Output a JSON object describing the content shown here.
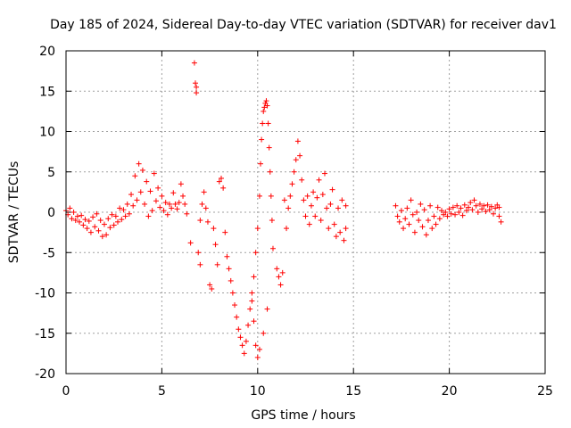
{
  "chart_data": {
    "type": "scatter",
    "title": "Day 185 of 2024, Sidereal Day-to-day VTEC variation (SDTVAR) for receiver dav1",
    "xlabel": "GPS time / hours",
    "ylabel": "SDTVAR / TECUs",
    "xlim": [
      0,
      25
    ],
    "ylim": [
      -20,
      20
    ],
    "xticks": [
      0,
      5,
      10,
      15,
      20,
      25
    ],
    "yticks": [
      -20,
      -15,
      -10,
      -5,
      0,
      5,
      10,
      15,
      20
    ],
    "grid": true,
    "marker": "+",
    "color": "#ff0000",
    "series": [
      {
        "name": "SDTVAR",
        "points": [
          [
            0.0,
            0.2
          ],
          [
            0.1,
            -0.3
          ],
          [
            0.2,
            0.5
          ],
          [
            0.3,
            -0.8
          ],
          [
            0.4,
            0.0
          ],
          [
            0.5,
            -1.0
          ],
          [
            0.6,
            -0.5
          ],
          [
            0.7,
            -1.2
          ],
          [
            0.8,
            -0.4
          ],
          [
            0.9,
            -1.6
          ],
          [
            1.0,
            -0.9
          ],
          [
            1.1,
            -2.0
          ],
          [
            1.2,
            -1.1
          ],
          [
            1.3,
            -2.5
          ],
          [
            1.4,
            -0.6
          ],
          [
            1.5,
            -1.8
          ],
          [
            1.6,
            -0.2
          ],
          [
            1.7,
            -2.3
          ],
          [
            1.8,
            -1.0
          ],
          [
            1.9,
            -3.0
          ],
          [
            2.0,
            -1.5
          ],
          [
            2.1,
            -2.8
          ],
          [
            2.2,
            -0.8
          ],
          [
            2.3,
            -1.9
          ],
          [
            2.4,
            -0.3
          ],
          [
            2.5,
            -1.6
          ],
          [
            2.6,
            -0.5
          ],
          [
            2.7,
            -1.2
          ],
          [
            2.8,
            0.5
          ],
          [
            2.9,
            -0.9
          ],
          [
            3.0,
            0.3
          ],
          [
            3.1,
            -0.5
          ],
          [
            3.2,
            1.0
          ],
          [
            3.3,
            -0.2
          ],
          [
            3.4,
            2.2
          ],
          [
            3.5,
            0.8
          ],
          [
            3.6,
            4.5
          ],
          [
            3.7,
            1.5
          ],
          [
            3.8,
            6.0
          ],
          [
            3.9,
            2.5
          ],
          [
            4.0,
            5.2
          ],
          [
            4.1,
            1.0
          ],
          [
            4.2,
            3.8
          ],
          [
            4.3,
            -0.5
          ],
          [
            4.4,
            2.6
          ],
          [
            4.5,
            0.2
          ],
          [
            4.6,
            4.8
          ],
          [
            4.7,
            1.4
          ],
          [
            4.8,
            3.0
          ],
          [
            4.9,
            0.6
          ],
          [
            5.0,
            2.0
          ],
          [
            5.1,
            0.2
          ],
          [
            5.2,
            1.2
          ],
          [
            5.3,
            -0.3
          ],
          [
            5.4,
            1.0
          ],
          [
            5.5,
            0.5
          ],
          [
            5.6,
            2.4
          ],
          [
            5.7,
            1.0
          ],
          [
            5.8,
            0.4
          ],
          [
            5.9,
            1.2
          ],
          [
            6.0,
            3.5
          ],
          [
            6.1,
            2.0
          ],
          [
            6.2,
            1.0
          ],
          [
            6.3,
            -0.2
          ],
          [
            6.5,
            -3.8
          ],
          [
            6.7,
            18.5
          ],
          [
            6.75,
            16.0
          ],
          [
            6.8,
            14.8
          ],
          [
            6.8,
            15.5
          ],
          [
            6.9,
            -5.0
          ],
          [
            7.0,
            -6.5
          ],
          [
            7.0,
            -1.0
          ],
          [
            7.1,
            1.0
          ],
          [
            7.2,
            2.5
          ],
          [
            7.3,
            0.5
          ],
          [
            7.4,
            -1.2
          ],
          [
            7.5,
            -9.0
          ],
          [
            7.6,
            -9.5
          ],
          [
            7.7,
            -2.0
          ],
          [
            7.8,
            -4.0
          ],
          [
            7.9,
            -6.5
          ],
          [
            8.0,
            3.8
          ],
          [
            8.1,
            4.2
          ],
          [
            8.2,
            3.0
          ],
          [
            8.3,
            -2.5
          ],
          [
            8.4,
            -5.5
          ],
          [
            8.5,
            -7.0
          ],
          [
            8.6,
            -8.5
          ],
          [
            8.7,
            -10.0
          ],
          [
            8.8,
            -11.5
          ],
          [
            8.9,
            -13.0
          ],
          [
            9.0,
            -14.5
          ],
          [
            9.1,
            -15.5
          ],
          [
            9.2,
            -16.5
          ],
          [
            9.3,
            -17.5
          ],
          [
            9.4,
            -16.0
          ],
          [
            9.5,
            -14.0
          ],
          [
            9.6,
            -12.0
          ],
          [
            9.7,
            -10.0
          ],
          [
            9.8,
            -8.0
          ],
          [
            9.9,
            -5.0
          ],
          [
            10.0,
            -2.0
          ],
          [
            10.1,
            2.0
          ],
          [
            10.15,
            6.0
          ],
          [
            10.2,
            9.0
          ],
          [
            10.25,
            11.0
          ],
          [
            10.3,
            12.5
          ],
          [
            10.35,
            13.0
          ],
          [
            10.4,
            13.5
          ],
          [
            10.45,
            13.8
          ],
          [
            10.5,
            13.2
          ],
          [
            10.55,
            11.0
          ],
          [
            10.6,
            8.0
          ],
          [
            10.65,
            5.0
          ],
          [
            10.7,
            2.0
          ],
          [
            10.75,
            -1.0
          ],
          [
            10.8,
            -4.5
          ],
          [
            10.5,
            -12.0
          ],
          [
            10.3,
            -15.0
          ],
          [
            10.1,
            -17.0
          ],
          [
            10.0,
            -18.0
          ],
          [
            9.9,
            -16.5
          ],
          [
            9.8,
            -13.5
          ],
          [
            9.7,
            -11.0
          ],
          [
            11.0,
            -7.0
          ],
          [
            11.1,
            -8.0
          ],
          [
            11.2,
            -9.0
          ],
          [
            11.3,
            -7.5
          ],
          [
            11.4,
            1.5
          ],
          [
            11.5,
            -2.0
          ],
          [
            11.6,
            0.5
          ],
          [
            11.7,
            2.0
          ],
          [
            11.8,
            3.5
          ],
          [
            11.9,
            5.0
          ],
          [
            12.0,
            6.5
          ],
          [
            12.1,
            8.8
          ],
          [
            12.2,
            7.0
          ],
          [
            12.3,
            4.0
          ],
          [
            12.4,
            1.5
          ],
          [
            12.5,
            -0.5
          ],
          [
            12.6,
            2.0
          ],
          [
            12.7,
            -1.5
          ],
          [
            12.8,
            0.8
          ],
          [
            12.9,
            2.5
          ],
          [
            13.0,
            -0.5
          ],
          [
            13.1,
            1.8
          ],
          [
            13.2,
            4.0
          ],
          [
            13.3,
            -1.0
          ],
          [
            13.4,
            2.2
          ],
          [
            13.5,
            4.8
          ],
          [
            13.6,
            0.5
          ],
          [
            13.7,
            -2.0
          ],
          [
            13.8,
            1.0
          ],
          [
            13.9,
            2.8
          ],
          [
            14.0,
            -1.5
          ],
          [
            14.1,
            -3.0
          ],
          [
            14.2,
            0.5
          ],
          [
            14.3,
            -2.5
          ],
          [
            14.4,
            1.5
          ],
          [
            14.5,
            -3.5
          ],
          [
            14.6,
            0.8
          ],
          [
            14.6,
            -2.0
          ],
          [
            17.2,
            0.8
          ],
          [
            17.3,
            -0.5
          ],
          [
            17.4,
            -1.2
          ],
          [
            17.5,
            0.2
          ],
          [
            17.6,
            -2.0
          ],
          [
            17.7,
            -0.8
          ],
          [
            17.8,
            0.5
          ],
          [
            17.9,
            -1.5
          ],
          [
            18.0,
            1.5
          ],
          [
            18.1,
            -0.3
          ],
          [
            18.2,
            -2.5
          ],
          [
            18.3,
            0.0
          ],
          [
            18.4,
            -1.0
          ],
          [
            18.5,
            1.0
          ],
          [
            18.6,
            -1.8
          ],
          [
            18.7,
            0.3
          ],
          [
            18.8,
            -2.8
          ],
          [
            18.9,
            -1.0
          ],
          [
            19.0,
            0.8
          ],
          [
            19.1,
            -2.0
          ],
          [
            19.2,
            -0.5
          ],
          [
            19.3,
            -1.5
          ],
          [
            19.4,
            0.6
          ],
          [
            19.5,
            -0.8
          ],
          [
            19.6,
            0.2
          ],
          [
            19.7,
            -0.3
          ],
          [
            19.8,
            0.0
          ],
          [
            19.9,
            -0.5
          ],
          [
            20.0,
            0.4
          ],
          [
            20.1,
            -0.2
          ],
          [
            20.2,
            0.6
          ],
          [
            20.3,
            -0.3
          ],
          [
            20.4,
            0.8
          ],
          [
            20.5,
            0.0
          ],
          [
            20.6,
            0.5
          ],
          [
            20.7,
            -0.4
          ],
          [
            20.8,
            0.9
          ],
          [
            20.9,
            0.2
          ],
          [
            21.0,
            0.6
          ],
          [
            21.1,
            1.2
          ],
          [
            21.2,
            0.3
          ],
          [
            21.3,
            1.5
          ],
          [
            21.4,
            0.8
          ],
          [
            21.5,
            0.0
          ],
          [
            21.6,
            1.0
          ],
          [
            21.7,
            0.4
          ],
          [
            21.8,
            0.8
          ],
          [
            21.9,
            0.1
          ],
          [
            22.0,
            0.9
          ],
          [
            22.1,
            0.3
          ],
          [
            22.2,
            0.7
          ],
          [
            22.3,
            -0.2
          ],
          [
            22.4,
            0.5
          ],
          [
            22.5,
            0.9
          ],
          [
            22.6,
            -0.5
          ],
          [
            22.7,
            -1.2
          ],
          [
            22.6,
            0.6
          ]
        ]
      }
    ]
  }
}
